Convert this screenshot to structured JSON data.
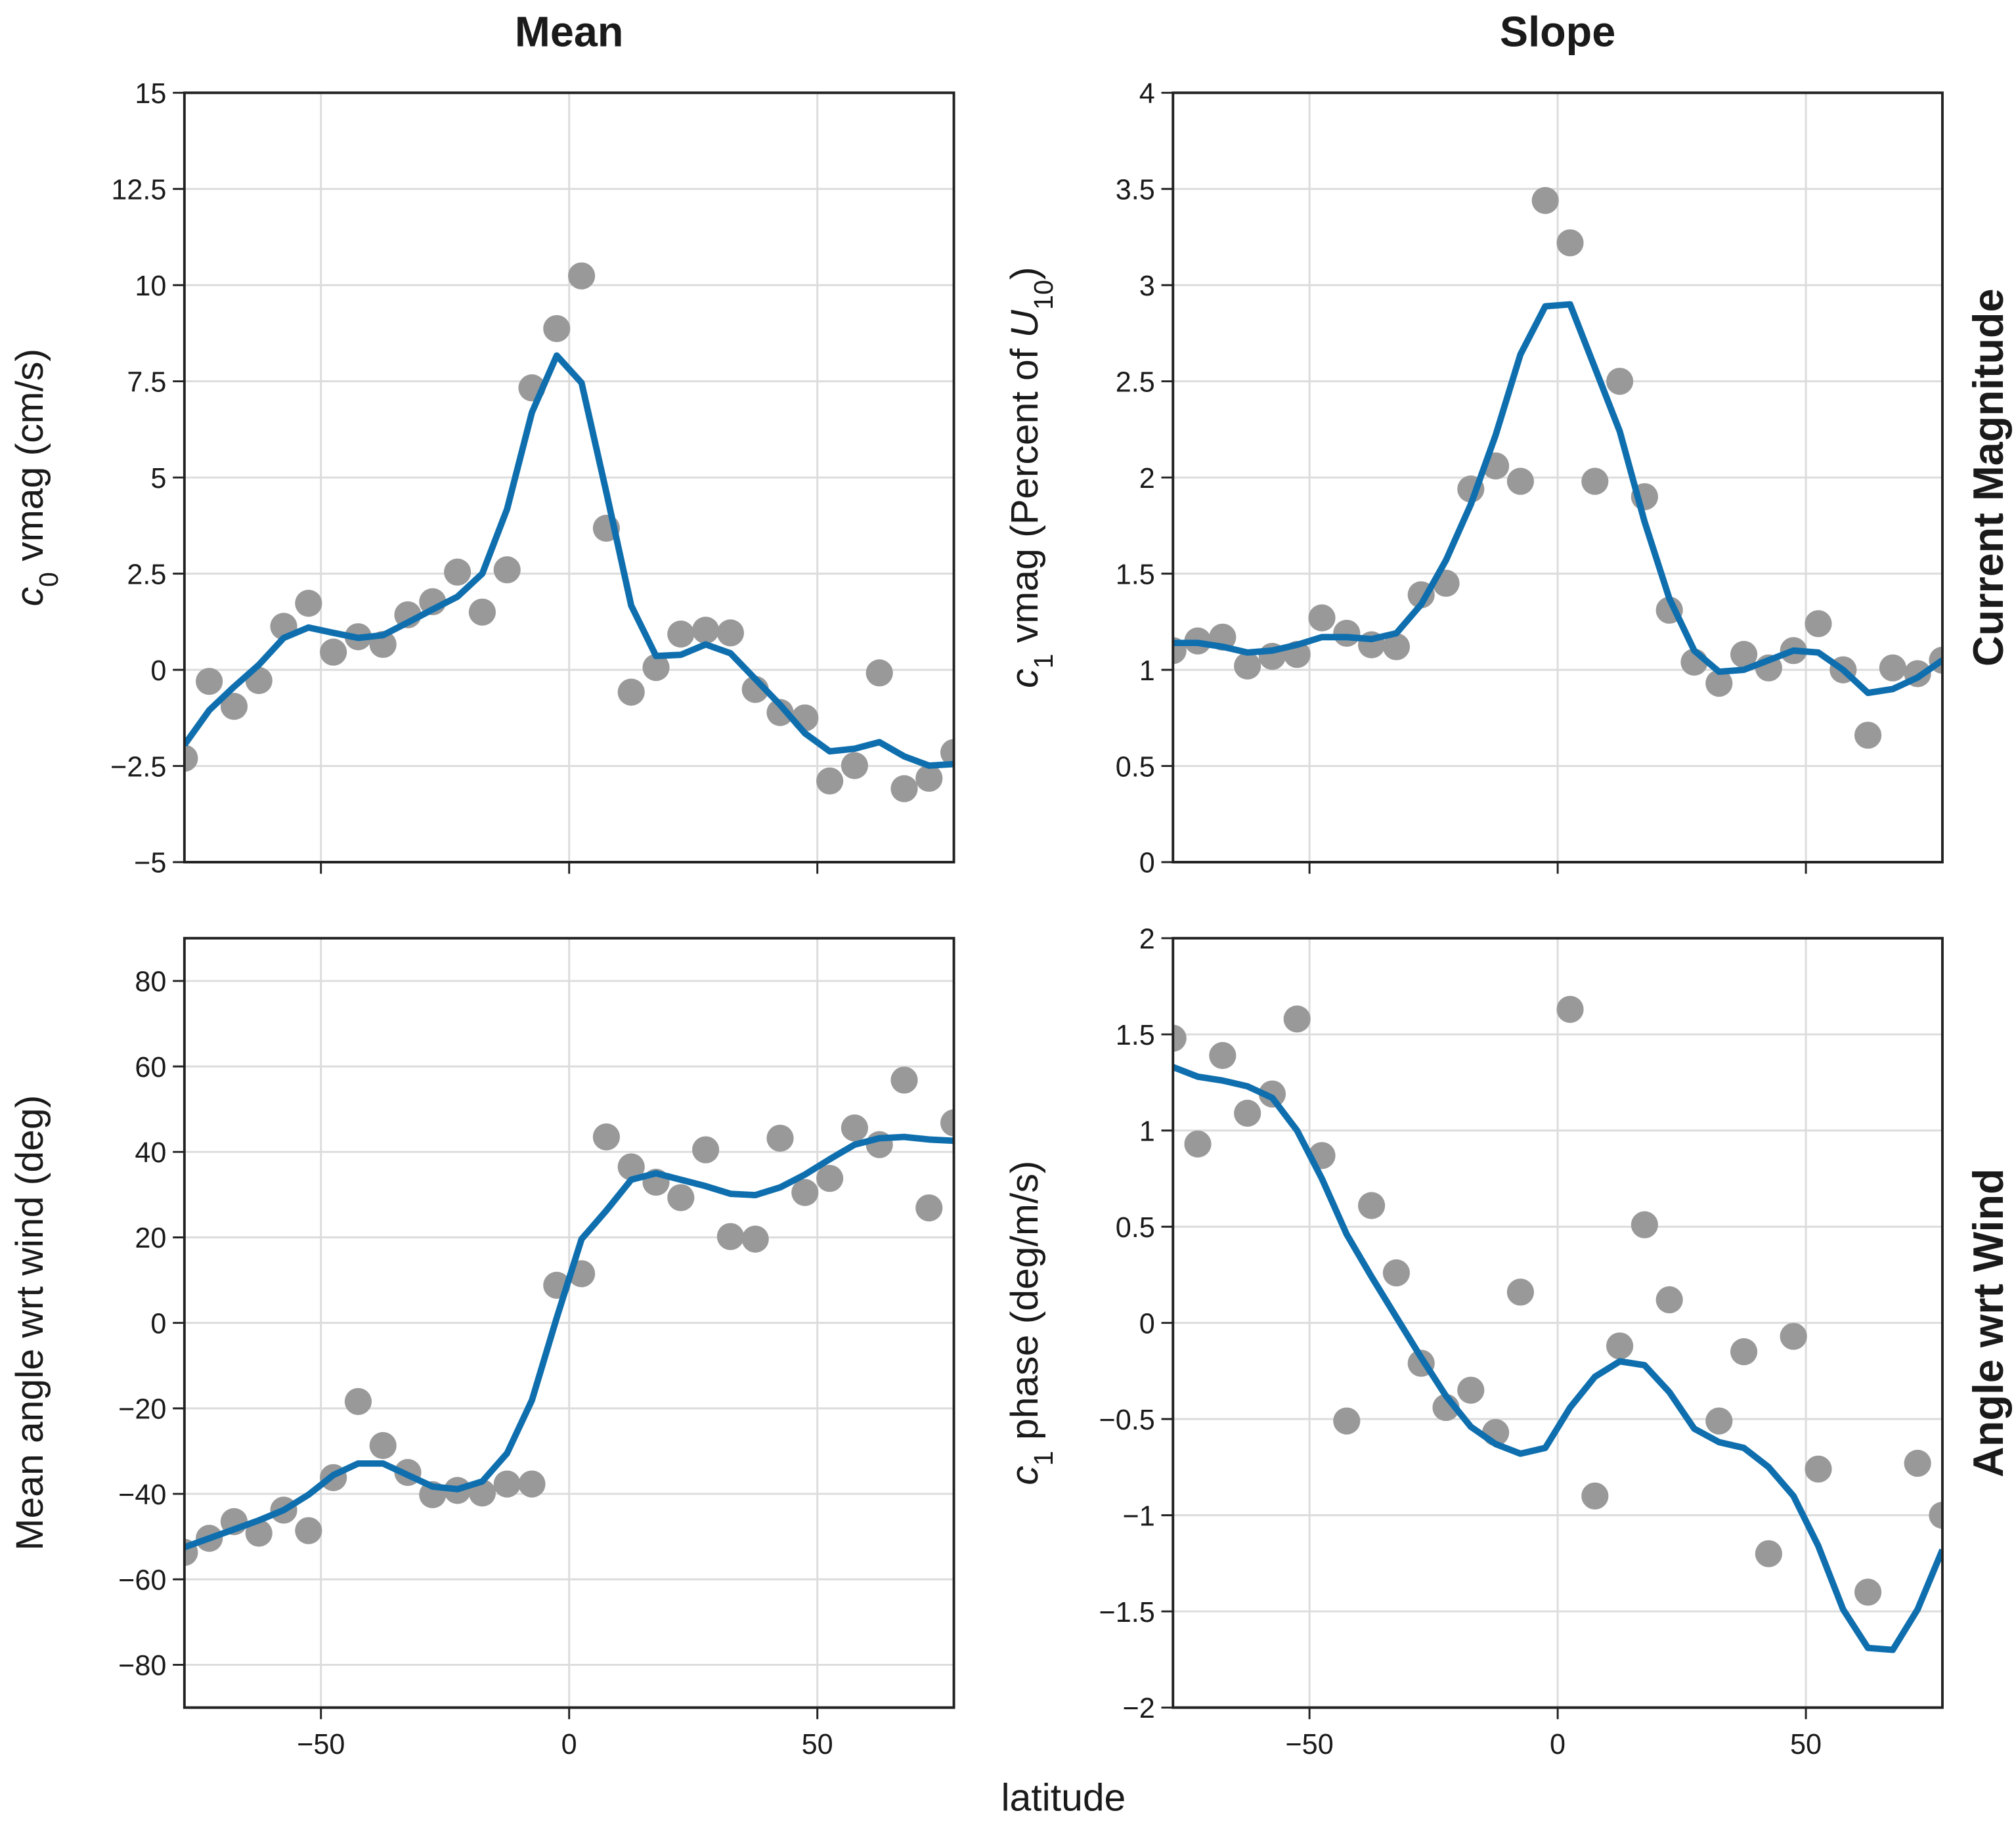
{
  "supxlabel": "latitude",
  "chart_data": [
    {
      "type": "scatter",
      "title": "Mean",
      "ylabel_parts": [
        {
          "text": "c",
          "style": "italic"
        },
        {
          "text": "0",
          "style": "sub"
        },
        {
          "text": " vmag (cm/s)"
        }
      ],
      "x": [
        -77.5,
        -72.5,
        -67.5,
        -62.5,
        -57.5,
        -52.5,
        -47.5,
        -42.5,
        -37.5,
        -32.5,
        -27.5,
        -22.5,
        -17.5,
        -12.5,
        -7.5,
        -2.5,
        2.5,
        7.5,
        12.5,
        17.5,
        22.5,
        27.5,
        32.5,
        37.5,
        42.5,
        47.5,
        52.5,
        57.5,
        62.5,
        67.5,
        72.5,
        77.5
      ],
      "values": [
        -2.3,
        -0.3,
        -0.95,
        -0.28,
        1.13,
        1.73,
        0.46,
        0.86,
        0.66,
        1.43,
        1.77,
        2.54,
        1.5,
        2.6,
        7.33,
        8.87,
        10.24,
        3.68,
        -0.58,
        0.06,
        0.93,
        1.03,
        0.96,
        -0.51,
        -1.11,
        -1.25,
        -2.89,
        -2.49,
        -0.08,
        -3.09,
        -2.82,
        -2.15
      ],
      "smooth": [
        -1.95,
        -1.05,
        -0.44,
        0.13,
        0.83,
        1.1,
        0.96,
        0.83,
        0.9,
        1.23,
        1.57,
        1.9,
        2.5,
        4.18,
        6.69,
        8.17,
        7.46,
        4.61,
        1.67,
        0.36,
        0.39,
        0.66,
        0.43,
        -0.24,
        -0.91,
        -1.65,
        -2.12,
        -2.05,
        -1.88,
        -2.25,
        -2.49,
        -2.45
      ],
      "color": "#999999",
      "line_color": "#0f6fae",
      "xlim": [
        -77.5,
        77.5
      ],
      "xticks": [
        -50,
        0,
        50
      ],
      "x_tick_labels": false,
      "ylim": [
        -5,
        15
      ],
      "yticks": [
        {
          "value": -5,
          "label": "−5"
        },
        {
          "value": -2.5,
          "label": "−2.5"
        },
        0,
        2.5,
        5,
        7.5,
        10,
        12.5,
        15
      ],
      "grid": true
    },
    {
      "type": "scatter",
      "title": "Slope",
      "row_label": "Current Magnitude",
      "ylabel_parts": [
        {
          "text": "c",
          "style": "italic"
        },
        {
          "text": "1",
          "style": "sub"
        },
        {
          "text": " vmag (Percent of "
        },
        {
          "text": "U",
          "style": "italic"
        },
        {
          "text": "10",
          "style": "sub"
        },
        {
          "text": ")"
        }
      ],
      "x": [
        -77.5,
        -72.5,
        -67.5,
        -62.5,
        -57.5,
        -52.5,
        -47.5,
        -42.5,
        -37.5,
        -32.5,
        -27.5,
        -22.5,
        -17.5,
        -12.5,
        -7.5,
        -2.5,
        2.5,
        7.5,
        12.5,
        17.5,
        22.5,
        27.5,
        32.5,
        37.5,
        42.5,
        47.5,
        52.5,
        57.5,
        62.5,
        67.5,
        72.5,
        77.5
      ],
      "values": [
        1.1,
        1.15,
        1.17,
        1.02,
        1.07,
        1.08,
        1.27,
        1.19,
        1.13,
        1.12,
        1.39,
        1.45,
        1.94,
        2.06,
        1.98,
        3.44,
        3.22,
        1.98,
        2.5,
        1.9,
        1.31,
        1.04,
        0.93,
        1.08,
        1.01,
        1.1,
        1.24,
        1.0,
        0.66,
        1.01,
        0.98,
        1.05
      ],
      "smooth": [
        1.14,
        1.14,
        1.12,
        1.09,
        1.1,
        1.13,
        1.17,
        1.17,
        1.16,
        1.19,
        1.34,
        1.57,
        1.86,
        2.22,
        2.64,
        2.89,
        2.9,
        2.57,
        2.24,
        1.77,
        1.37,
        1.1,
        0.99,
        1.0,
        1.05,
        1.1,
        1.09,
        1.0,
        0.88,
        0.9,
        0.96,
        1.05
      ],
      "color": "#999999",
      "line_color": "#0f6fae",
      "xlim": [
        -77.5,
        77.5
      ],
      "xticks": [
        -50,
        0,
        50
      ],
      "x_tick_labels": false,
      "ylim": [
        0,
        4
      ],
      "yticks": [
        0,
        0.5,
        1,
        1.5,
        2,
        2.5,
        3,
        3.5,
        4
      ],
      "grid": true
    },
    {
      "type": "scatter",
      "ylabel_parts": [
        {
          "text": "Mean angle wrt wind (deg)"
        }
      ],
      "x": [
        -77.5,
        -72.5,
        -67.5,
        -62.5,
        -57.5,
        -52.5,
        -47.5,
        -42.5,
        -37.5,
        -32.5,
        -27.5,
        -22.5,
        -17.5,
        -12.5,
        -7.5,
        -2.5,
        2.5,
        7.5,
        12.5,
        17.5,
        22.5,
        27.5,
        32.5,
        37.5,
        42.5,
        47.5,
        52.5,
        57.5,
        62.5,
        67.5,
        72.5,
        77.5
      ],
      "values": [
        -53.7,
        -50.4,
        -46.5,
        -49.2,
        -43.8,
        -48.6,
        -36.2,
        -18.4,
        -28.7,
        -35.0,
        -40.2,
        -39.2,
        -39.8,
        -37.7,
        -37.7,
        8.8,
        11.5,
        43.5,
        36.5,
        32.9,
        29.3,
        40.5,
        20.2,
        19.6,
        43.2,
        30.5,
        33.8,
        45.6,
        41.7,
        56.8,
        26.9,
        46.8
      ],
      "smooth": [
        -52.5,
        -50.4,
        -48.3,
        -46.2,
        -43.8,
        -40.2,
        -35.6,
        -32.9,
        -32.9,
        -35.6,
        -38.3,
        -38.9,
        -37.1,
        -30.5,
        -18.1,
        1.2,
        19.6,
        26.3,
        33.5,
        35.0,
        33.5,
        32.0,
        30.2,
        29.9,
        31.7,
        34.7,
        38.3,
        41.7,
        43.2,
        43.5,
        42.9,
        42.6
      ],
      "color": "#999999",
      "line_color": "#0f6fae",
      "xlim": [
        -77.5,
        77.5
      ],
      "xticks": [
        {
          "value": -50,
          "label": "−50"
        },
        0,
        50
      ],
      "x_tick_labels": true,
      "ylim": [
        -90,
        90
      ],
      "yticks": [
        {
          "value": -80,
          "label": "−80"
        },
        {
          "value": -60,
          "label": "−60"
        },
        {
          "value": -40,
          "label": "−40"
        },
        {
          "value": -20,
          "label": "−20"
        },
        0,
        20,
        40,
        60,
        80
      ],
      "grid": true
    },
    {
      "type": "scatter",
      "row_label": "Angle wrt Wind",
      "ylabel_parts": [
        {
          "text": "c",
          "style": "italic"
        },
        {
          "text": "1",
          "style": "sub"
        },
        {
          "text": " phase (deg/m/s)"
        }
      ],
      "x": [
        -77.5,
        -72.5,
        -67.5,
        -62.5,
        -57.5,
        -52.5,
        -47.5,
        -42.5,
        -37.5,
        -32.5,
        -27.5,
        -22.5,
        -17.5,
        -12.5,
        -7.5,
        -2.5,
        2.5,
        7.5,
        12.5,
        17.5,
        22.5,
        27.5,
        32.5,
        37.5,
        42.5,
        47.5,
        52.5,
        57.5,
        62.5,
        67.5,
        72.5,
        77.5
      ],
      "values": [
        1.48,
        0.93,
        1.39,
        1.09,
        1.19,
        1.58,
        0.87,
        -0.51,
        0.61,
        0.26,
        -0.21,
        -0.44,
        -0.35,
        -0.57,
        0.16,
        null,
        1.63,
        -0.9,
        -0.12,
        0.51,
        0.12,
        null,
        -0.51,
        -0.15,
        -1.2,
        -0.07,
        -0.76,
        null,
        -1.4,
        null,
        -0.73,
        -1.0
      ],
      "smooth": [
        1.33,
        1.28,
        1.26,
        1.23,
        1.17,
        1.0,
        0.75,
        0.46,
        0.24,
        0.03,
        -0.18,
        -0.38,
        -0.54,
        -0.63,
        -0.68,
        -0.65,
        -0.44,
        -0.28,
        -0.2,
        -0.22,
        -0.36,
        -0.55,
        -0.62,
        -0.65,
        -0.75,
        -0.9,
        -1.16,
        -1.49,
        -1.69,
        -1.7,
        -1.49,
        -1.18
      ],
      "color": "#999999",
      "line_color": "#0f6fae",
      "xlim": [
        -77.5,
        77.5
      ],
      "xticks": [
        {
          "value": -50,
          "label": "−50"
        },
        0,
        50
      ],
      "x_tick_labels": true,
      "ylim": [
        -2,
        2
      ],
      "yticks": [
        {
          "value": -2,
          "label": "−2"
        },
        {
          "value": -1.5,
          "label": "−1.5"
        },
        {
          "value": -1,
          "label": "−1"
        },
        {
          "value": -0.5,
          "label": "−0.5"
        },
        0,
        0.5,
        1,
        1.5,
        2
      ],
      "grid": true
    }
  ]
}
